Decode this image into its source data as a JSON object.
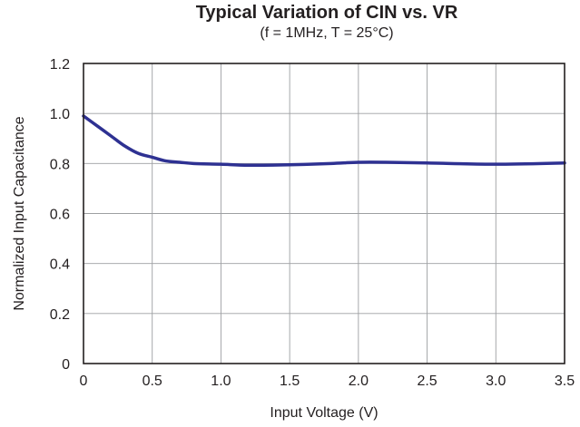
{
  "chart_data": {
    "type": "line",
    "title": "Typical Variation of CIN vs. VR",
    "subtitle": "(f = 1MHz, T = 25°C)",
    "xlabel": "Input Voltage (V)",
    "ylabel": "Normalized Input Capacitance",
    "xlim": [
      0,
      3.5
    ],
    "ylim": [
      0,
      1.2
    ],
    "xticks": [
      "0",
      "0.5",
      "1.0",
      "1.5",
      "2.0",
      "2.5",
      "3.0",
      "3.5"
    ],
    "yticks": [
      "0",
      "0.2",
      "0.4",
      "0.6",
      "0.8",
      "1.0",
      "1.2"
    ],
    "grid": true,
    "line_color": "#2e3192",
    "series": [
      {
        "x": [
          0,
          0.1,
          0.2,
          0.3,
          0.4,
          0.5,
          0.6,
          0.7,
          0.8,
          1.0,
          1.2,
          1.5,
          1.8,
          2.0,
          2.2,
          2.5,
          3.0,
          3.5
        ],
        "values": [
          0.99,
          0.95,
          0.91,
          0.87,
          0.84,
          0.825,
          0.81,
          0.805,
          0.8,
          0.797,
          0.793,
          0.795,
          0.8,
          0.805,
          0.805,
          0.802,
          0.797,
          0.802
        ]
      }
    ]
  }
}
